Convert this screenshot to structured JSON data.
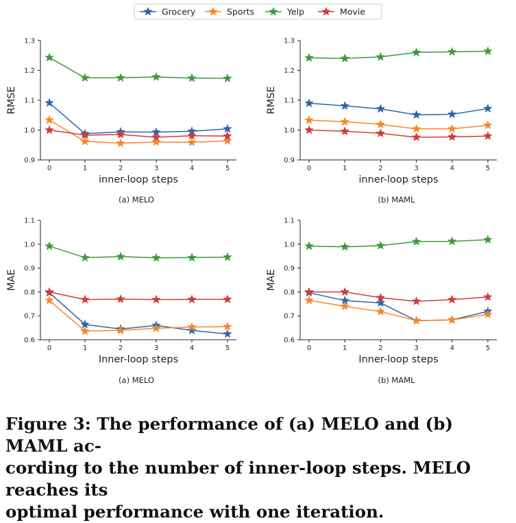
{
  "legend": [
    {
      "name": "Grocery",
      "color": "#2f65a7"
    },
    {
      "name": "Sports",
      "color": "#f5872a"
    },
    {
      "name": "Yelp",
      "color": "#3d9a3d"
    },
    {
      "name": "Movie",
      "color": "#d23b37"
    }
  ],
  "chart_data": [
    {
      "type": "line",
      "subcaption": "(a) MELO",
      "xlabel": "inner-loop steps",
      "ylabel": "RMSE",
      "x": [
        0,
        1,
        2,
        3,
        4,
        5
      ],
      "xticks": [
        "0",
        "1",
        "2",
        "3",
        "4",
        "5"
      ],
      "ylim": [
        0.9,
        1.3
      ],
      "yticks": [
        "0.9",
        "1.0",
        "1.1",
        "1.2",
        "1.3"
      ],
      "series": [
        {
          "name": "Grocery",
          "values": [
            1.091,
            0.988,
            0.994,
            0.993,
            0.996,
            1.004
          ]
        },
        {
          "name": "Sports",
          "values": [
            1.034,
            0.962,
            0.956,
            0.96,
            0.959,
            0.964
          ]
        },
        {
          "name": "Yelp",
          "values": [
            1.243,
            1.175,
            1.175,
            1.178,
            1.174,
            1.173
          ]
        },
        {
          "name": "Movie",
          "values": [
            1.0,
            0.983,
            0.985,
            0.976,
            0.981,
            0.98
          ]
        }
      ]
    },
    {
      "type": "line",
      "subcaption": "(b) MAML",
      "xlabel": "inner-loop steps",
      "ylabel": "RMSE",
      "x": [
        0,
        1,
        2,
        3,
        4,
        5
      ],
      "xticks": [
        "0",
        "1",
        "2",
        "3",
        "4",
        "5"
      ],
      "ylim": [
        0.9,
        1.3
      ],
      "yticks": [
        "0.9",
        "1.0",
        "1.1",
        "1.2",
        "1.3"
      ],
      "series": [
        {
          "name": "Grocery",
          "values": [
            1.09,
            1.081,
            1.071,
            1.051,
            1.053,
            1.072
          ]
        },
        {
          "name": "Sports",
          "values": [
            1.033,
            1.028,
            1.019,
            1.004,
            1.004,
            1.016
          ]
        },
        {
          "name": "Yelp",
          "values": [
            1.242,
            1.24,
            1.245,
            1.26,
            1.262,
            1.264
          ]
        },
        {
          "name": "Movie",
          "values": [
            1.0,
            0.996,
            0.989,
            0.976,
            0.977,
            0.98
          ]
        }
      ]
    },
    {
      "type": "line",
      "subcaption": "(a) MELO",
      "xlabel": "Inner-loop steps",
      "ylabel": "MAE",
      "x": [
        0,
        1,
        2,
        3,
        4,
        5
      ],
      "xticks": [
        "0",
        "1",
        "2",
        "3",
        "4",
        "5"
      ],
      "ylim": [
        0.6,
        1.1
      ],
      "yticks": [
        "0.6",
        "0.7",
        "0.8",
        "0.9",
        "1.0",
        "1.1"
      ],
      "series": [
        {
          "name": "Grocery",
          "values": [
            0.797,
            0.664,
            0.645,
            0.66,
            0.639,
            0.624
          ]
        },
        {
          "name": "Sports",
          "values": [
            0.765,
            0.636,
            0.639,
            0.648,
            0.653,
            0.655
          ]
        },
        {
          "name": "Yelp",
          "values": [
            0.992,
            0.944,
            0.948,
            0.943,
            0.944,
            0.946
          ]
        },
        {
          "name": "Movie",
          "values": [
            0.8,
            0.768,
            0.77,
            0.768,
            0.769,
            0.769
          ]
        }
      ]
    },
    {
      "type": "line",
      "subcaption": "(b) MAML",
      "xlabel": "Inner-loop steps",
      "ylabel": "MAE",
      "x": [
        0,
        1,
        2,
        3,
        4,
        5
      ],
      "xticks": [
        "0",
        "1",
        "2",
        "3",
        "4",
        "5"
      ],
      "ylim": [
        0.6,
        1.1
      ],
      "yticks": [
        "0.6",
        "0.7",
        "0.8",
        "0.9",
        "1.0",
        "1.1"
      ],
      "series": [
        {
          "name": "Grocery",
          "values": [
            0.797,
            0.764,
            0.754,
            0.68,
            0.683,
            0.719
          ]
        },
        {
          "name": "Sports",
          "values": [
            0.765,
            0.74,
            0.718,
            0.68,
            0.683,
            0.706
          ]
        },
        {
          "name": "Yelp",
          "values": [
            0.992,
            0.989,
            0.994,
            1.011,
            1.012,
            1.019
          ]
        },
        {
          "name": "Movie",
          "values": [
            0.8,
            0.8,
            0.776,
            0.761,
            0.768,
            0.779
          ]
        }
      ]
    }
  ],
  "caption": {
    "line1": "Figure 3: The performance of (a) MELO and (b) MAML ac-",
    "line2": "cording to the number of inner-loop steps. MELO reaches its",
    "line3": "optimal performance with one iteration."
  }
}
